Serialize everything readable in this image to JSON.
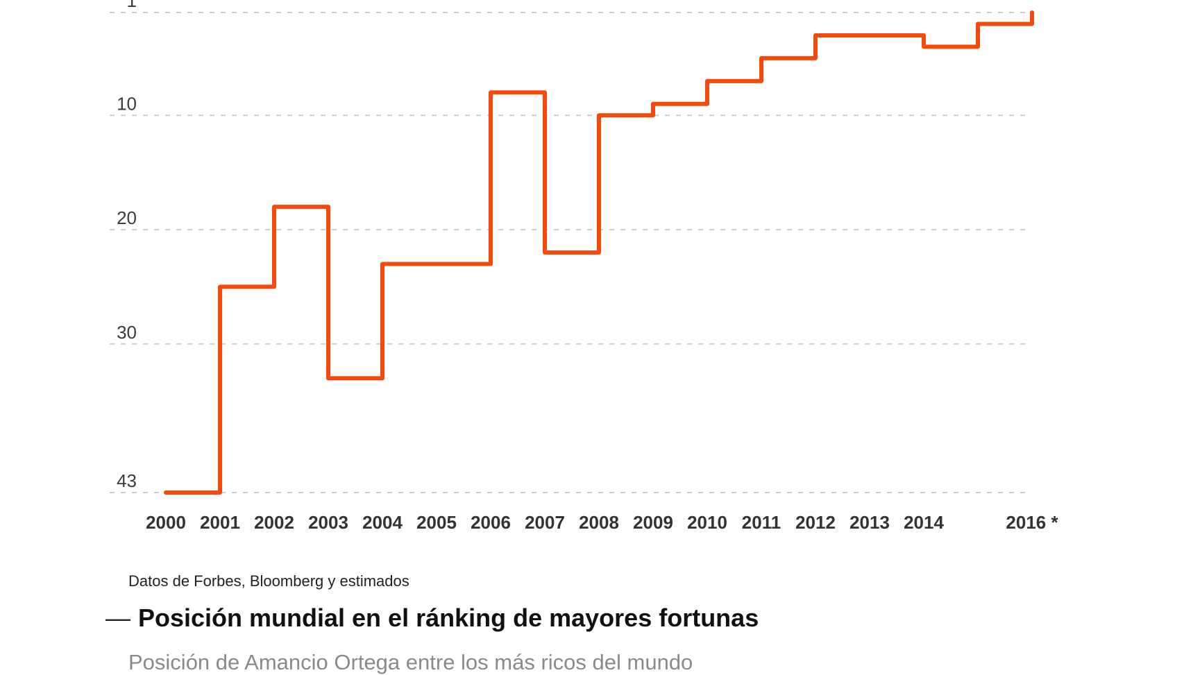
{
  "chart": {
    "source": "Datos de Forbes, Bloomberg y estimados",
    "title_dash": "—",
    "title": "Posición mundial en el ránking de mayores fortunas",
    "subtitle": "Posición de Amancio Ortega entre los más ricos del mundo"
  },
  "chart_data": {
    "type": "line",
    "line_style": "step-after",
    "title": "Posición mundial en el ránking de mayores fortunas",
    "subtitle": "Posición de Amancio Ortega entre los más ricos del mundo",
    "source": "Datos de Forbes, Bloomberg y estimados",
    "x": [
      2000,
      2001,
      2002,
      2003,
      2004,
      2005,
      2006,
      2007,
      2008,
      2009,
      2010,
      2011,
      2012,
      2013,
      2014,
      2015,
      2016
    ],
    "values": [
      43,
      25,
      18,
      33,
      23,
      23,
      8,
      22,
      10,
      9,
      7,
      5,
      3,
      3,
      4,
      2,
      1
    ],
    "x_tick_labels": [
      {
        "year": 2000,
        "label": "2000"
      },
      {
        "year": 2001,
        "label": "2001"
      },
      {
        "year": 2002,
        "label": "2002"
      },
      {
        "year": 2003,
        "label": "2003"
      },
      {
        "year": 2004,
        "label": "2004"
      },
      {
        "year": 2005,
        "label": "2005"
      },
      {
        "year": 2006,
        "label": "2006"
      },
      {
        "year": 2007,
        "label": "2007"
      },
      {
        "year": 2008,
        "label": "2008"
      },
      {
        "year": 2009,
        "label": "2009"
      },
      {
        "year": 2010,
        "label": "2010"
      },
      {
        "year": 2011,
        "label": "2011"
      },
      {
        "year": 2012,
        "label": "2012"
      },
      {
        "year": 2013,
        "label": "2013"
      },
      {
        "year": 2014,
        "label": "2014"
      },
      {
        "year": 2016,
        "label": "2016 *"
      }
    ],
    "y_ticks": [
      1,
      10,
      20,
      30,
      43
    ],
    "ylim": [
      1,
      43
    ],
    "y_axis_inverted": true,
    "xlim": [
      2000,
      2016
    ],
    "grid": "horizontal-dotted",
    "line_color": "#f54a0c",
    "grid_color": "#cccccc",
    "background_color": "#ffffff"
  }
}
